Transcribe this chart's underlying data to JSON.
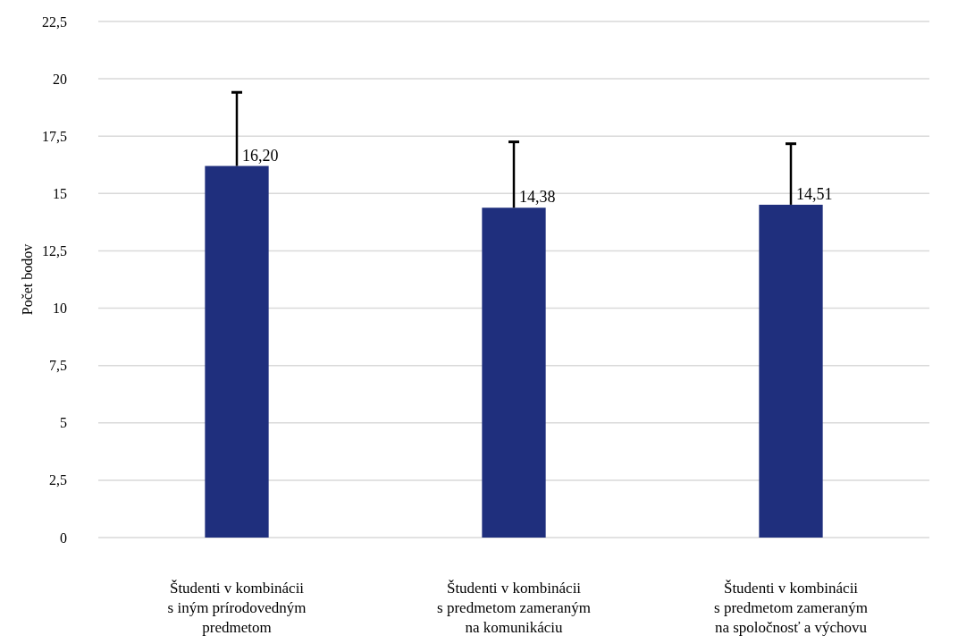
{
  "chart_data": {
    "type": "bar",
    "ylabel": "Počet bodov",
    "categories": [
      "Študenti v kombinácii\ns iným prírodovedným\npredmetom",
      "Študenti v kombinácii\ns predmetom zameraným\nna komunikáciu",
      "Študenti v kombinácii\ns predmetom zameraným\nna spoločnosť a výchovu"
    ],
    "values": [
      16.2,
      14.38,
      14.51
    ],
    "value_labels": [
      "16,20",
      "14,38",
      "14,51"
    ],
    "errors": [
      [
        16.2,
        19.41
      ],
      [
        14.38,
        17.25
      ],
      [
        14.51,
        17.17
      ]
    ],
    "color": "#1f2f7d",
    "ylim": [
      0,
      22.5
    ],
    "yticks": [
      0,
      {
        "value": 2.5,
        "label": "2,5"
      },
      5,
      {
        "value": 7.5,
        "label": "7,5"
      },
      10,
      {
        "value": 12.5,
        "label": "12,5"
      },
      15,
      {
        "value": 17.5,
        "label": "17,5"
      },
      20,
      {
        "value": 22.5,
        "label": "22,5"
      }
    ],
    "grid": "y"
  }
}
